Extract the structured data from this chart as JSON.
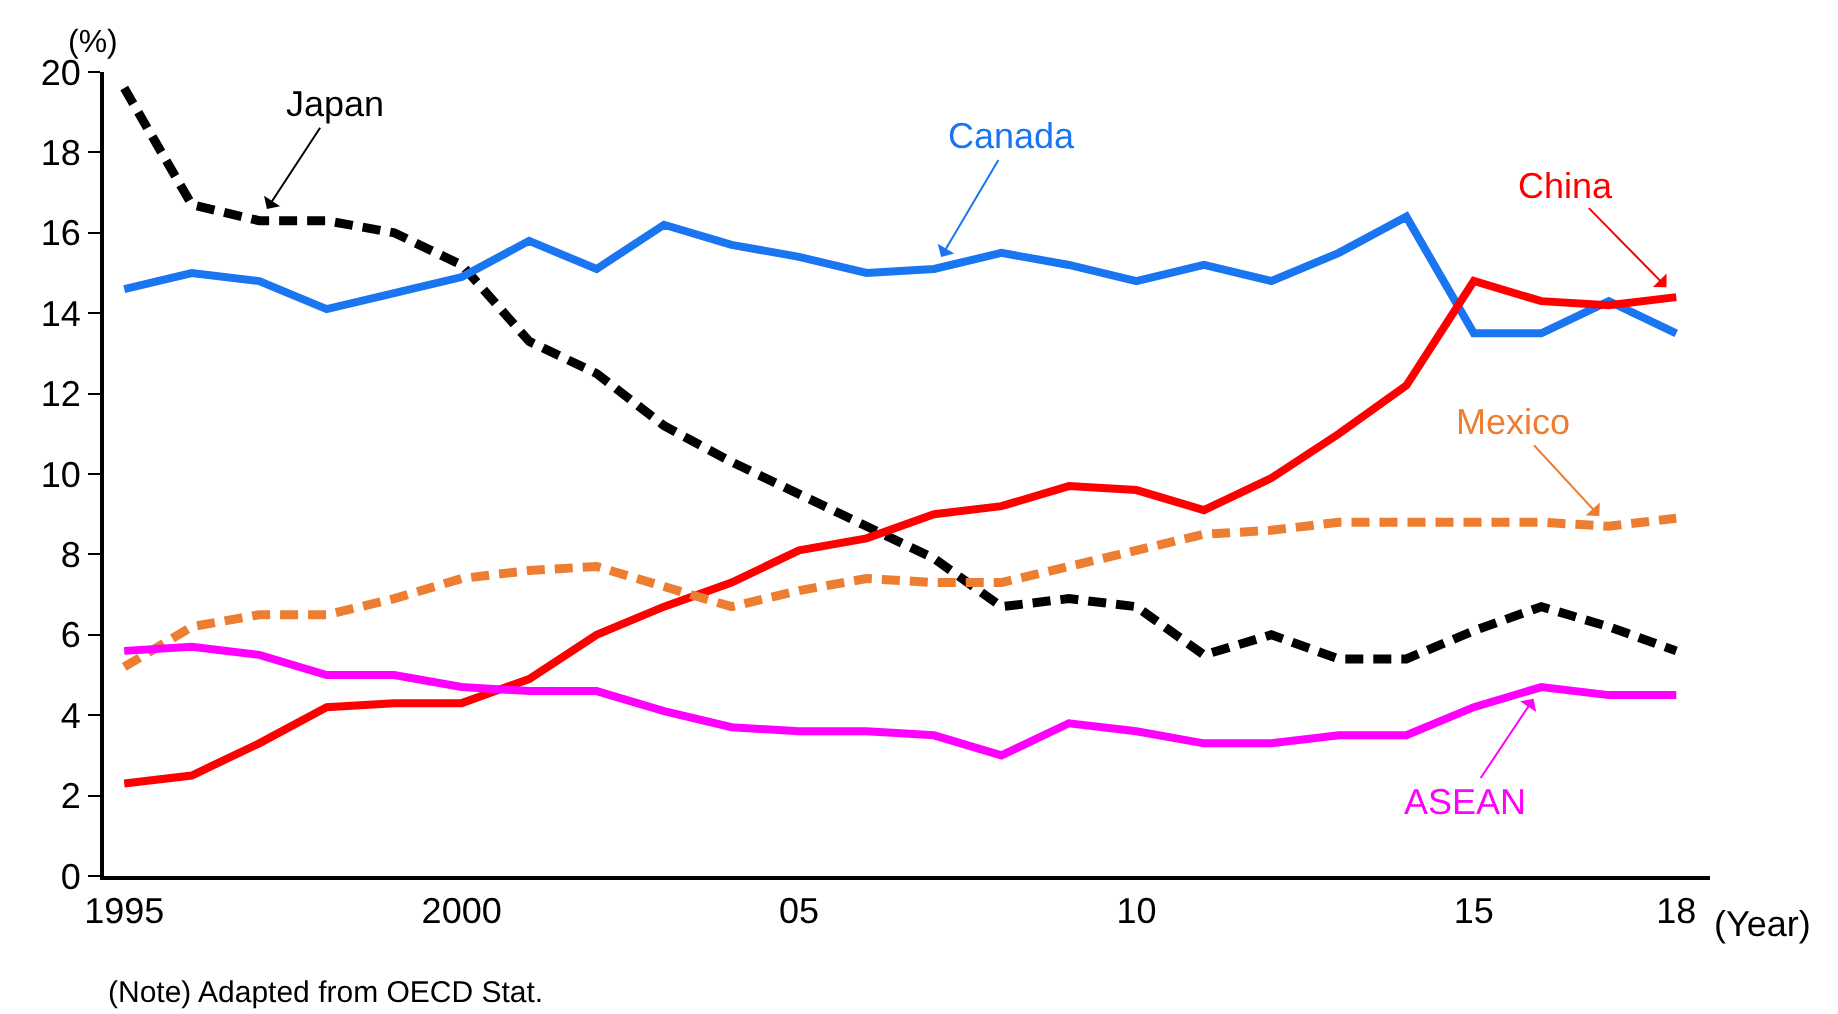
{
  "chart_data": {
    "type": "line",
    "xlabel": "(Year)",
    "ylabel": "(%)",
    "x": [
      1995,
      1996,
      1997,
      1998,
      1999,
      2000,
      2001,
      2002,
      2003,
      2004,
      2005,
      2006,
      2007,
      2008,
      2009,
      2010,
      2011,
      2012,
      2013,
      2014,
      2015,
      2016,
      2017,
      2018
    ],
    "xlim": [
      1994.7,
      2018.5
    ],
    "xticks": [
      1995,
      2000,
      {
        "value": 2005,
        "label": "05"
      },
      {
        "value": 2010,
        "label": "10"
      },
      {
        "value": 2015,
        "label": "15"
      },
      {
        "value": 2018,
        "label": "18"
      }
    ],
    "ylim": [
      0,
      20
    ],
    "yticks": [
      0,
      2,
      4,
      6,
      8,
      10,
      12,
      14,
      16,
      18,
      20
    ],
    "grid": false,
    "legend": false,
    "marker": "none",
    "series": [
      {
        "name": "Japan",
        "color": "#000000",
        "line_style": "dashed",
        "values": [
          19.6,
          16.7,
          16.3,
          16.3,
          16.0,
          15.2,
          13.3,
          12.5,
          11.2,
          10.3,
          9.5,
          8.7,
          7.9,
          6.7,
          6.9,
          6.7,
          5.5,
          6.0,
          5.4,
          5.4,
          6.1,
          6.7,
          6.2,
          5.6
        ]
      },
      {
        "name": "Canada",
        "color": "#1a75f0",
        "line_style": "solid",
        "values": [
          14.6,
          15.0,
          14.8,
          14.1,
          14.5,
          14.9,
          15.8,
          15.1,
          16.2,
          15.7,
          15.4,
          15.0,
          15.1,
          15.5,
          15.2,
          14.8,
          15.2,
          14.8,
          15.5,
          16.4,
          13.5,
          13.5,
          14.3,
          13.5
        ]
      },
      {
        "name": "China",
        "color": "#ff0000",
        "line_style": "solid",
        "values": [
          2.3,
          2.5,
          3.3,
          4.2,
          4.3,
          4.3,
          4.9,
          6.0,
          6.7,
          7.3,
          8.1,
          8.4,
          9.0,
          9.2,
          9.7,
          9.6,
          9.1,
          9.9,
          11.0,
          12.2,
          14.8,
          14.3,
          14.2,
          14.4
        ]
      },
      {
        "name": "Mexico",
        "color": "#ed7d31",
        "line_style": "dashed",
        "values": [
          5.2,
          6.2,
          6.5,
          6.5,
          6.9,
          7.4,
          7.6,
          7.7,
          7.2,
          6.7,
          7.1,
          7.4,
          7.3,
          7.3,
          7.7,
          8.1,
          8.5,
          8.6,
          8.8,
          8.8,
          8.8,
          8.8,
          8.7,
          8.9
        ]
      },
      {
        "name": "ASEAN",
        "color": "#ff00ff",
        "line_style": "solid",
        "values": [
          5.6,
          5.7,
          5.5,
          5.0,
          5.0,
          4.7,
          4.6,
          4.6,
          4.1,
          3.7,
          3.6,
          3.6,
          3.5,
          3.0,
          3.8,
          3.6,
          3.3,
          3.3,
          3.5,
          3.5,
          4.2,
          4.7,
          4.5,
          4.5
        ]
      }
    ],
    "annotations": [
      "(Note) Adapted from OECD Stat."
    ]
  }
}
